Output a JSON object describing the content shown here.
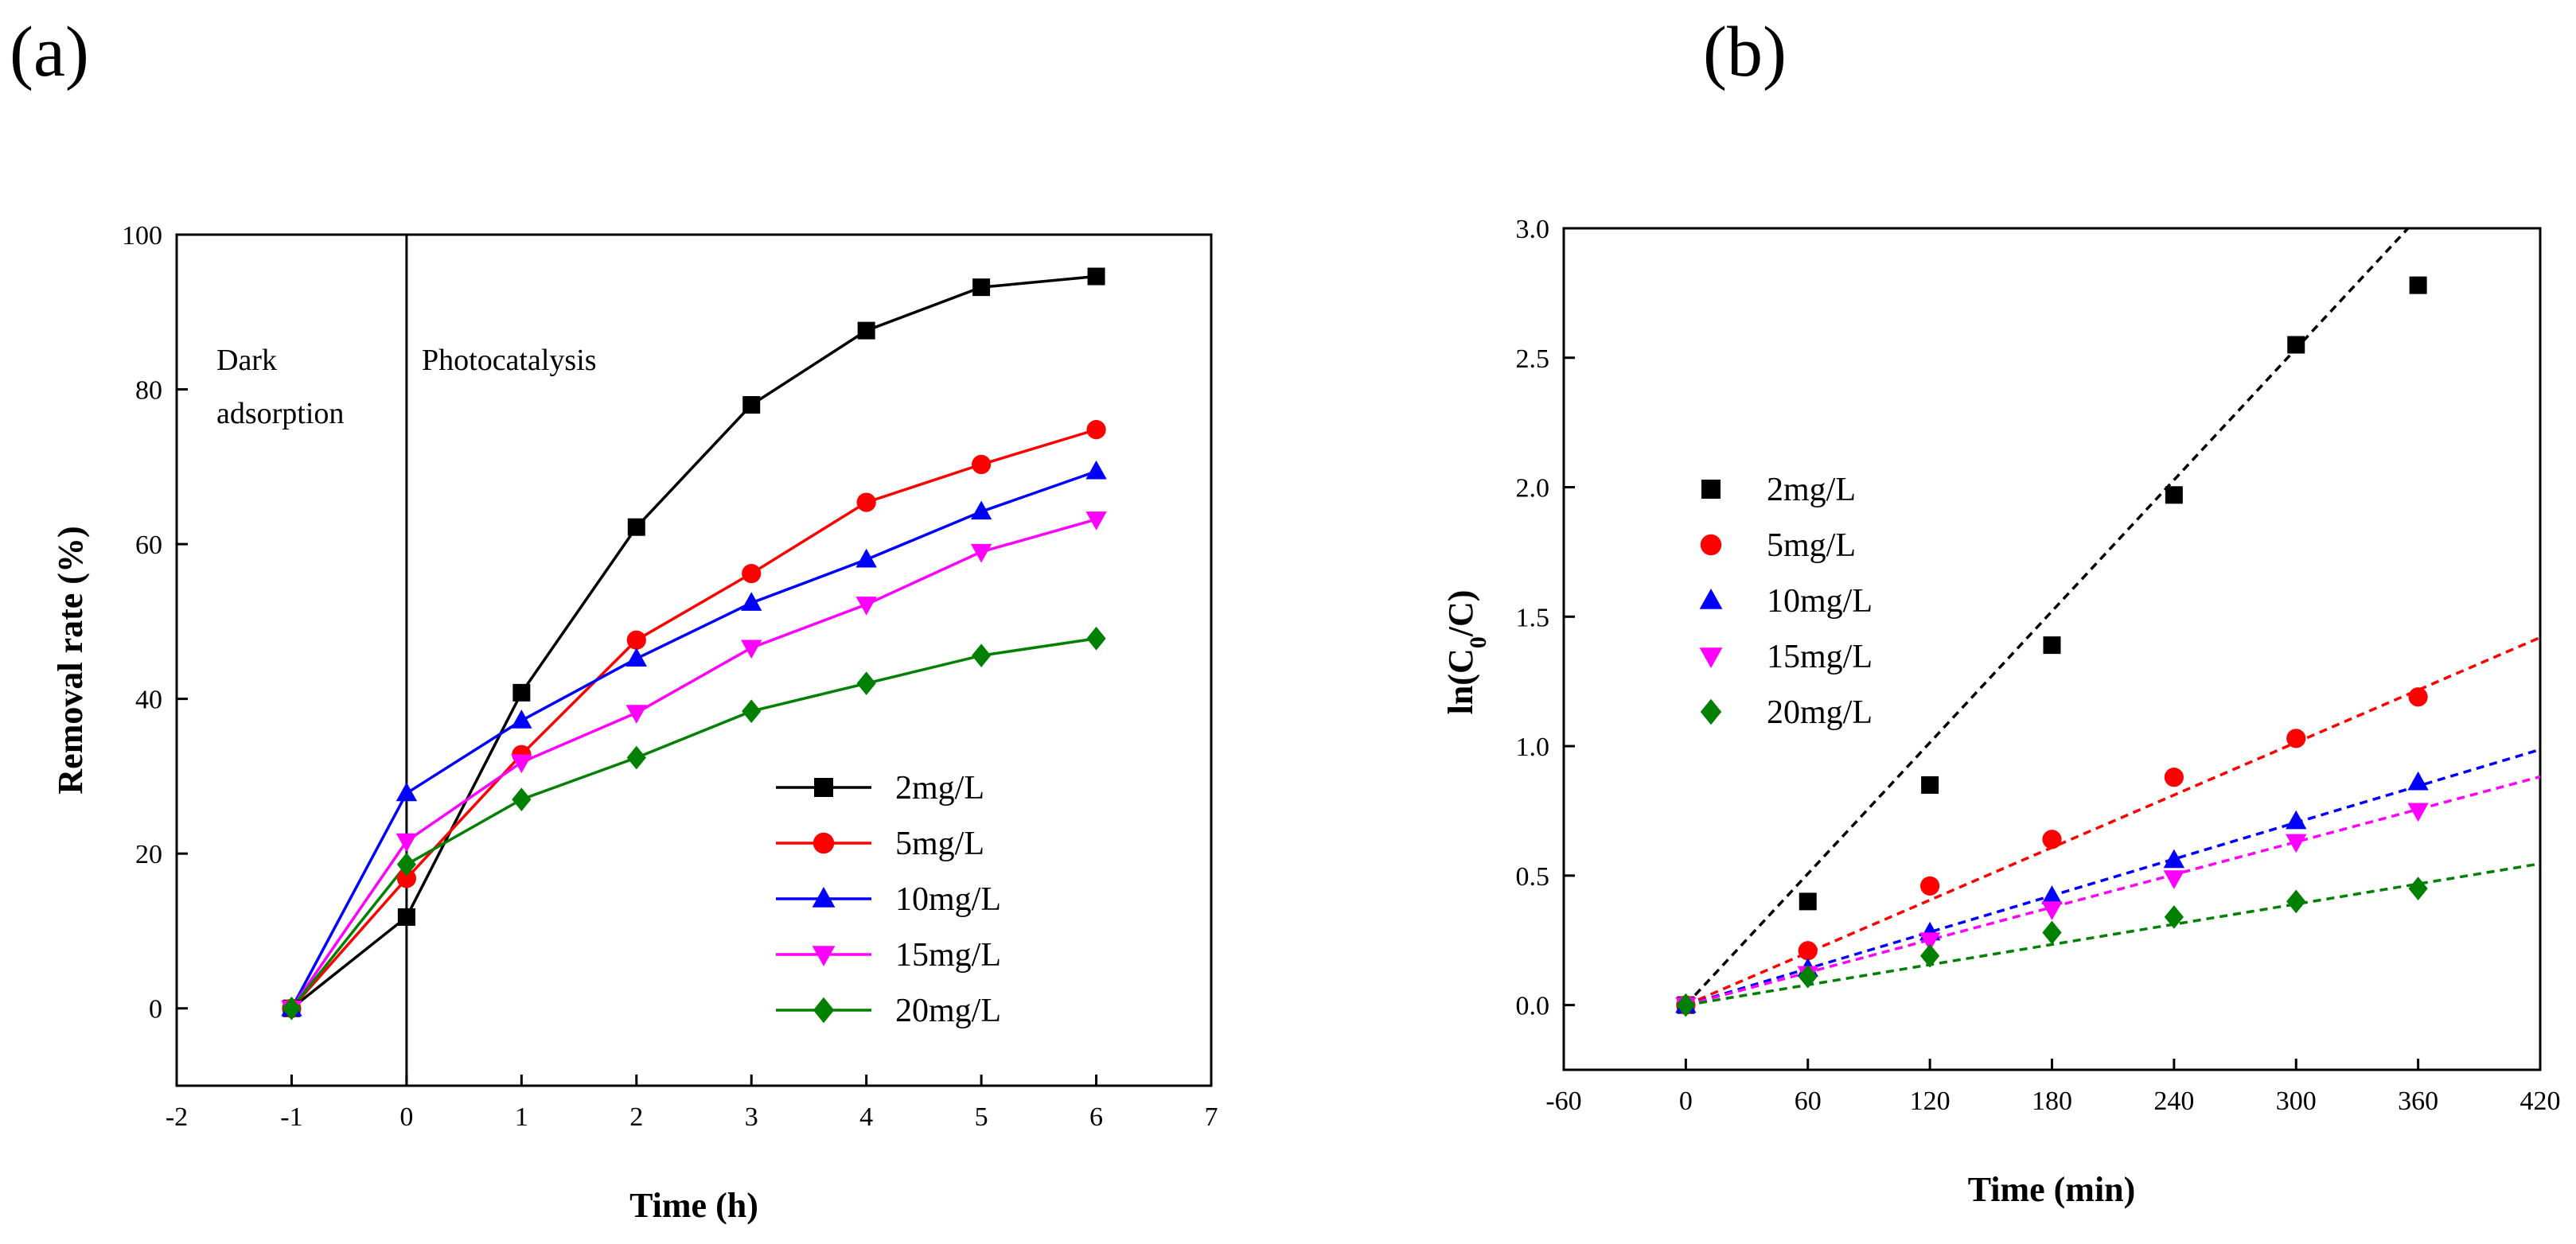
{
  "chart_data": [
    {
      "panel_label": "(a)",
      "type": "line",
      "xlabel": "Time (h)",
      "ylabel": "Removal rate (%)",
      "xlim": [
        -2,
        7
      ],
      "ylim": [
        -10,
        100
      ],
      "xticks": [
        "-2",
        "-1",
        "0",
        "1",
        "2",
        "3",
        "4",
        "5",
        "6",
        "7"
      ],
      "yticks": [
        "0",
        "20",
        "40",
        "60",
        "80",
        "100"
      ],
      "x": [
        -1,
        0,
        1,
        2,
        3,
        4,
        5,
        6
      ],
      "annotations": [
        "Dark",
        "adsorption",
        "Photocatalysis"
      ],
      "divider_x": 0,
      "legend_position": "bottom-right",
      "series": [
        {
          "name": "2mg/L",
          "color": "#000000",
          "marker": "square",
          "values": [
            0,
            11.8,
            40.8,
            62.2,
            78.0,
            87.6,
            93.2,
            94.6
          ]
        },
        {
          "name": "5mg/L",
          "color": "#ff0000",
          "marker": "circle",
          "values": [
            0,
            16.8,
            32.8,
            47.6,
            56.2,
            65.4,
            70.3,
            74.8
          ]
        },
        {
          "name": "10mg/L",
          "color": "#0000ff",
          "marker": "triangle-up",
          "values": [
            0,
            27.8,
            37.2,
            45.2,
            52.4,
            58.0,
            64.2,
            69.4
          ]
        },
        {
          "name": "15mg/L",
          "color": "#ff00ff",
          "marker": "triangle-down",
          "values": [
            0,
            21.6,
            31.8,
            38.2,
            46.6,
            52.2,
            59.0,
            63.2
          ]
        },
        {
          "name": "20mg/L",
          "color": "#008000",
          "marker": "diamond",
          "values": [
            0,
            18.6,
            27.0,
            32.4,
            38.4,
            42.0,
            45.6,
            47.8
          ]
        }
      ]
    },
    {
      "panel_label": "(b)",
      "type": "scatter",
      "xlabel": "Time (min)",
      "ylabel_main": "ln(C",
      "ylabel_sub": "0",
      "ylabel_end": "/C)",
      "xlim": [
        -60,
        420
      ],
      "ylim": [
        -0.25,
        3.0
      ],
      "xticks": [
        "-60",
        "0",
        "60",
        "120",
        "180",
        "240",
        "300",
        "360",
        "420"
      ],
      "yticks": [
        "0.0",
        "0.5",
        "1.0",
        "1.5",
        "2.0",
        "2.5",
        "3.0"
      ],
      "x": [
        0,
        60,
        120,
        180,
        240,
        300,
        360
      ],
      "legend_position": "upper-left",
      "series": [
        {
          "name": "2mg/L",
          "color": "#000000",
          "marker": "square",
          "values": [
            0,
            0.4,
            0.85,
            1.39,
            1.97,
            2.55,
            2.78
          ],
          "fit_slope": 0.00845
        },
        {
          "name": "5mg/L",
          "color": "#ff0000",
          "marker": "circle",
          "values": [
            0,
            0.21,
            0.46,
            0.64,
            0.88,
            1.03,
            1.19
          ],
          "fit_slope": 0.00338
        },
        {
          "name": "10mg/L",
          "color": "#0000ff",
          "marker": "triangle-up",
          "values": [
            0,
            0.14,
            0.28,
            0.42,
            0.56,
            0.71,
            0.86
          ],
          "fit_slope": 0.00235
        },
        {
          "name": "15mg/L",
          "color": "#ff00ff",
          "marker": "triangle-down",
          "values": [
            0,
            0.12,
            0.25,
            0.37,
            0.49,
            0.63,
            0.75
          ],
          "fit_slope": 0.0021
        },
        {
          "name": "20mg/L",
          "color": "#008000",
          "marker": "diamond",
          "values": [
            0,
            0.11,
            0.19,
            0.28,
            0.34,
            0.4,
            0.45
          ],
          "fit_slope": 0.0013
        }
      ]
    }
  ]
}
